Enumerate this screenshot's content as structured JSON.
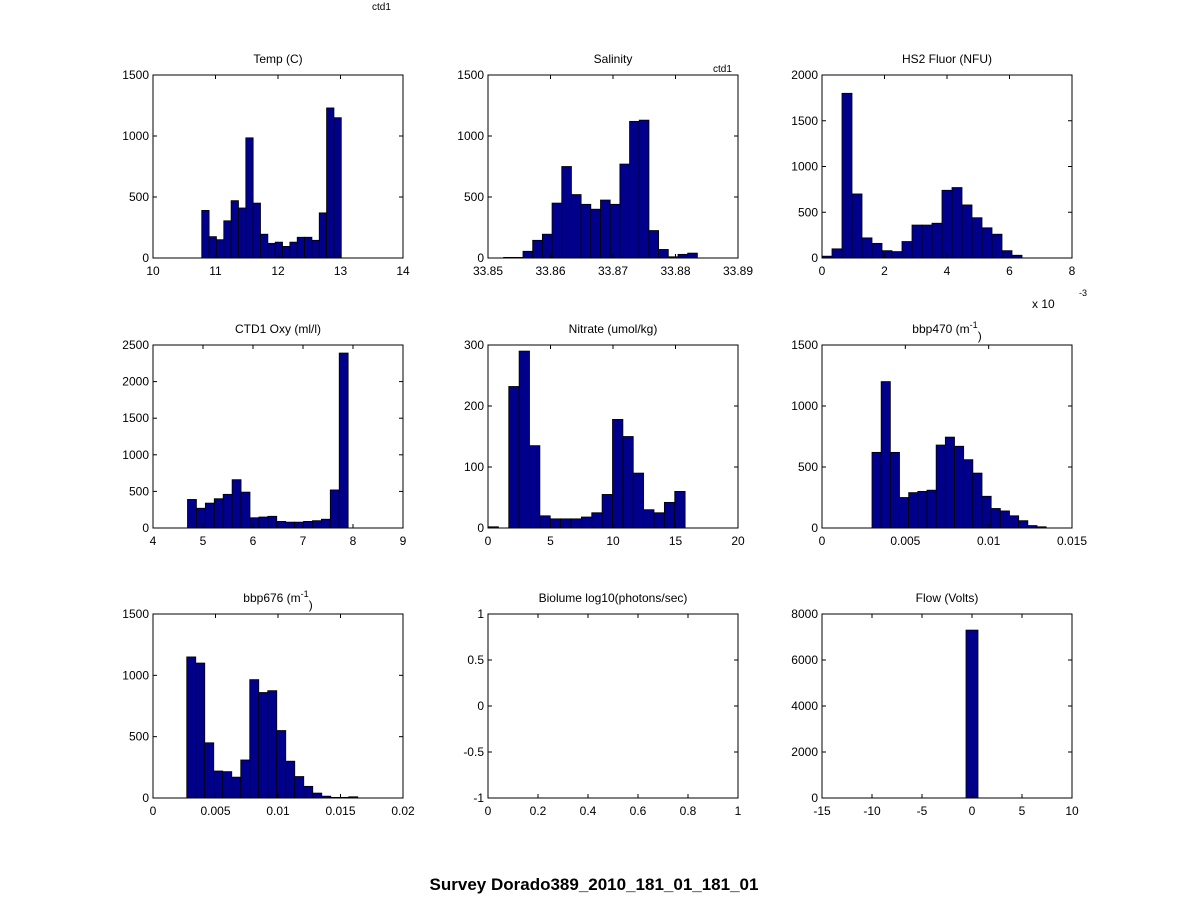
{
  "figure": {
    "title": "Survey Dorado389_2010_181_01_181_01",
    "top_label": "ctd1",
    "salinity_label": "ctd1",
    "bar_color": "#00008B",
    "edge_color": "#000000"
  },
  "chart_data": [
    {
      "type": "bar",
      "title": "Temp (C)",
      "xlim": [
        10,
        14
      ],
      "ylim": [
        0,
        1500
      ],
      "xticks": [
        10,
        11,
        12,
        13,
        14
      ],
      "yticks": [
        0,
        500,
        1000,
        1500
      ],
      "xtick_labels": [
        "10",
        "11",
        "12",
        "13",
        "14"
      ],
      "ytick_labels": [
        "0",
        "500",
        "1000",
        "1500"
      ],
      "bin_start": 10.78,
      "bin_width": 0.1175,
      "values": [
        390,
        175,
        150,
        305,
        470,
        410,
        985,
        450,
        195,
        120,
        130,
        95,
        130,
        170,
        170,
        145,
        370,
        1230,
        1150
      ]
    },
    {
      "type": "bar",
      "title": "Salinity",
      "xlim": [
        33.85,
        33.89
      ],
      "ylim": [
        0,
        1500
      ],
      "xticks": [
        33.85,
        33.86,
        33.87,
        33.88,
        33.89
      ],
      "yticks": [
        0,
        500,
        1000,
        1500
      ],
      "xtick_labels": [
        "33.85",
        "33.86",
        "33.87",
        "33.88",
        "33.89"
      ],
      "ytick_labels": [
        "0",
        "500",
        "1000",
        "1500"
      ],
      "bin_start": 33.8525,
      "bin_width": 0.00155,
      "values": [
        5,
        5,
        55,
        145,
        195,
        450,
        750,
        520,
        440,
        400,
        475,
        440,
        770,
        1120,
        1130,
        225,
        70,
        10,
        30,
        40
      ]
    },
    {
      "type": "bar",
      "title": "HS2 Fluor (NFU)",
      "exponent_label": "x 10",
      "exponent_power": "-3",
      "xlim": [
        0,
        8
      ],
      "ylim": [
        0,
        2000
      ],
      "xticks": [
        0,
        2,
        4,
        6,
        8
      ],
      "yticks": [
        0,
        500,
        1000,
        1500,
        2000
      ],
      "xtick_labels": [
        "0",
        "2",
        "4",
        "6",
        "8"
      ],
      "ytick_labels": [
        "0",
        "500",
        "1000",
        "1500",
        "2000"
      ],
      "bin_start": 0.0,
      "bin_width": 0.32,
      "values": [
        20,
        100,
        1800,
        700,
        220,
        160,
        80,
        70,
        180,
        360,
        360,
        380,
        740,
        770,
        580,
        440,
        330,
        260,
        80,
        30
      ]
    },
    {
      "type": "bar",
      "title": "CTD1 Oxy (ml/l)",
      "xlim": [
        4,
        9
      ],
      "ylim": [
        0,
        2500
      ],
      "xticks": [
        4,
        5,
        6,
        7,
        8,
        9
      ],
      "yticks": [
        0,
        500,
        1000,
        1500,
        2000,
        2500
      ],
      "xtick_labels": [
        "4",
        "5",
        "6",
        "7",
        "8",
        "9"
      ],
      "ytick_labels": [
        "0",
        "500",
        "1000",
        "1500",
        "2000",
        "2500"
      ],
      "bin_start": 4.69,
      "bin_width": 0.1785,
      "values": [
        390,
        270,
        340,
        400,
        460,
        660,
        490,
        140,
        150,
        160,
        90,
        80,
        80,
        90,
        100,
        120,
        520,
        2390
      ]
    },
    {
      "type": "bar",
      "title": "Nitrate (umol/kg)",
      "xlim": [
        0,
        20
      ],
      "ylim": [
        0,
        300
      ],
      "xticks": [
        0,
        5,
        10,
        15,
        20
      ],
      "yticks": [
        0,
        100,
        200,
        300
      ],
      "xtick_labels": [
        "0",
        "5",
        "10",
        "15",
        "20"
      ],
      "ytick_labels": [
        "0",
        "100",
        "200",
        "300"
      ],
      "bin_start": 0.0,
      "bin_width": 0.83,
      "values": [
        2,
        0,
        232,
        290,
        135,
        20,
        15,
        15,
        15,
        18,
        25,
        55,
        178,
        150,
        90,
        30,
        25,
        42,
        60
      ]
    },
    {
      "type": "bar",
      "title": "bbp470",
      "title_unit": "(m",
      "title_power": "-1",
      "title_close": ")",
      "xlim": [
        0,
        0.015
      ],
      "ylim": [
        0,
        1500
      ],
      "xticks": [
        0,
        0.005,
        0.01,
        0.015
      ],
      "yticks": [
        0,
        500,
        1000,
        1500
      ],
      "xtick_labels": [
        "0",
        "0.005",
        "0.01",
        "0.015"
      ],
      "ytick_labels": [
        "0",
        "500",
        "1000",
        "1500"
      ],
      "bin_start": 0.003,
      "bin_width": 0.00055,
      "values": [
        620,
        1200,
        620,
        250,
        290,
        300,
        310,
        680,
        745,
        670,
        560,
        450,
        260,
        160,
        140,
        100,
        60,
        20,
        10
      ]
    },
    {
      "type": "bar",
      "title": "bbp676",
      "title_unit": "(m",
      "title_power": "-1",
      "title_close": ")",
      "xlim": [
        0,
        0.02
      ],
      "ylim": [
        0,
        1500
      ],
      "xticks": [
        0,
        0.005,
        0.01,
        0.015,
        0.02
      ],
      "yticks": [
        0,
        500,
        1000,
        1500
      ],
      "xtick_labels": [
        "0",
        "0.005",
        "0.01",
        "0.015",
        "0.02"
      ],
      "ytick_labels": [
        "0",
        "500",
        "1000",
        "1500"
      ],
      "bin_start": 0.0027,
      "bin_width": 0.00072,
      "values": [
        1150,
        1100,
        450,
        220,
        215,
        170,
        310,
        965,
        860,
        875,
        550,
        300,
        175,
        95,
        40,
        15,
        5,
        5,
        10
      ]
    },
    {
      "type": "bar",
      "title": "Biolume log10(photons/sec)",
      "xlim": [
        0,
        1
      ],
      "ylim": [
        -1,
        1
      ],
      "xticks": [
        0,
        0.2,
        0.4,
        0.6,
        0.8,
        1
      ],
      "yticks": [
        -1,
        -0.5,
        0,
        0.5,
        1
      ],
      "xtick_labels": [
        "0",
        "0.2",
        "0.4",
        "0.6",
        "0.8",
        "1"
      ],
      "ytick_labels": [
        "-1",
        "-0.5",
        "0",
        "0.5",
        "1"
      ],
      "bin_start": 0,
      "bin_width": 0.05,
      "values": []
    },
    {
      "type": "bar",
      "title": "Flow (Volts)",
      "xlim": [
        -15,
        10
      ],
      "ylim": [
        0,
        8000
      ],
      "xticks": [
        -15,
        -10,
        -5,
        0,
        5,
        10
      ],
      "yticks": [
        0,
        2000,
        4000,
        6000,
        8000
      ],
      "xtick_labels": [
        "-15",
        "-10",
        "-5",
        "0",
        "5",
        "10"
      ],
      "ytick_labels": [
        "0",
        "2000",
        "4000",
        "6000",
        "8000"
      ],
      "bin_start": -0.6,
      "bin_width": 1.2,
      "values": [
        7300
      ]
    }
  ]
}
